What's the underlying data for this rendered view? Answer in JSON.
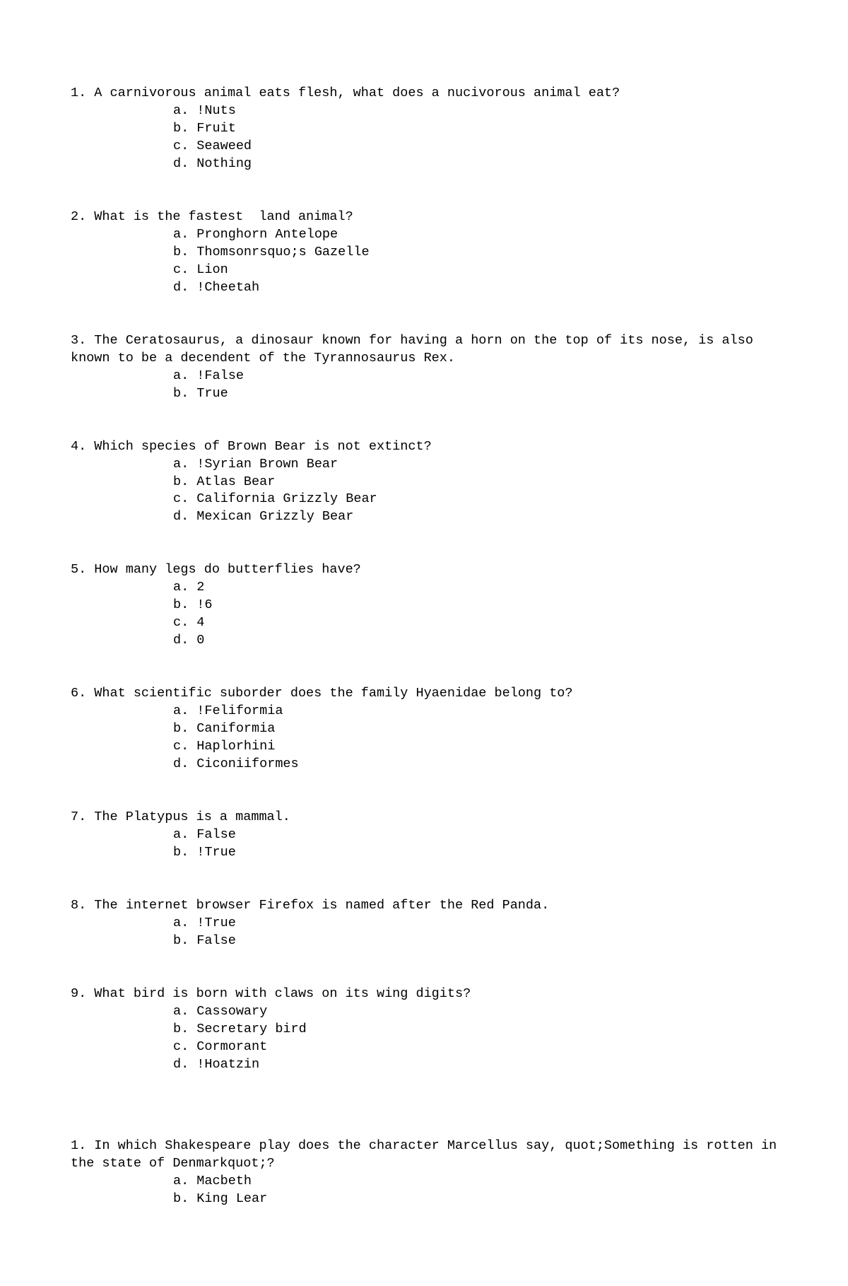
{
  "questions": [
    {
      "num": "1.",
      "text": "A carnivorous animal eats flesh, what does a nucivorous animal eat?",
      "options": [
        {
          "letter": "a.",
          "text": "!Nuts"
        },
        {
          "letter": "b.",
          "text": "Fruit"
        },
        {
          "letter": "c.",
          "text": "Seaweed"
        },
        {
          "letter": "d.",
          "text": "Nothing"
        }
      ]
    },
    {
      "num": "2.",
      "text": "What is the fastest  land animal?",
      "options": [
        {
          "letter": "a.",
          "text": "Pronghorn Antelope"
        },
        {
          "letter": "b.",
          "text": "Thomsonrsquo;s Gazelle"
        },
        {
          "letter": "c.",
          "text": "Lion"
        },
        {
          "letter": "d.",
          "text": "!Cheetah"
        }
      ]
    },
    {
      "num": "3.",
      "text": "The Ceratosaurus, a dinosaur known for having a horn on the top of its nose, is also known to be a decendent of the Tyrannosaurus Rex.",
      "options": [
        {
          "letter": "a.",
          "text": "!False"
        },
        {
          "letter": "b.",
          "text": "True"
        }
      ]
    },
    {
      "num": "4.",
      "text": "Which species of Brown Bear is not extinct?",
      "options": [
        {
          "letter": "a.",
          "text": "!Syrian Brown Bear"
        },
        {
          "letter": "b.",
          "text": "Atlas Bear"
        },
        {
          "letter": "c.",
          "text": "California Grizzly Bear"
        },
        {
          "letter": "d.",
          "text": "Mexican Grizzly Bear"
        }
      ]
    },
    {
      "num": "5.",
      "text": "How many legs do butterflies have?",
      "options": [
        {
          "letter": "a.",
          "text": "2"
        },
        {
          "letter": "b.",
          "text": "!6"
        },
        {
          "letter": "c.",
          "text": "4"
        },
        {
          "letter": "d.",
          "text": "0"
        }
      ]
    },
    {
      "num": "6.",
      "text": "What scientific suborder does the family Hyaenidae belong to?",
      "options": [
        {
          "letter": "a.",
          "text": "!Feliformia"
        },
        {
          "letter": "b.",
          "text": "Caniformia"
        },
        {
          "letter": "c.",
          "text": "Haplorhini"
        },
        {
          "letter": "d.",
          "text": "Ciconiiformes"
        }
      ]
    },
    {
      "num": "7.",
      "text": "The Platypus is a mammal.",
      "options": [
        {
          "letter": "a.",
          "text": "False"
        },
        {
          "letter": "b.",
          "text": "!True"
        }
      ]
    },
    {
      "num": "8.",
      "text": "The internet browser Firefox is named after the Red Panda.",
      "options": [
        {
          "letter": "a.",
          "text": "!True"
        },
        {
          "letter": "b.",
          "text": "False"
        }
      ]
    },
    {
      "num": "9.",
      "text": "What bird is born with claws on its wing digits?",
      "options": [
        {
          "letter": "a.",
          "text": "Cassowary"
        },
        {
          "letter": "b.",
          "text": "Secretary bird"
        },
        {
          "letter": "c.",
          "text": "Cormorant"
        },
        {
          "letter": "d.",
          "text": "!Hoatzin"
        }
      ]
    }
  ],
  "section2": [
    {
      "num": "1.",
      "text": "In which Shakespeare play does the character Marcellus say, quot;Something is rotten in the state of Denmarkquot;?",
      "options": [
        {
          "letter": "a.",
          "text": "Macbeth"
        },
        {
          "letter": "b.",
          "text": "King Lear"
        }
      ]
    }
  ]
}
